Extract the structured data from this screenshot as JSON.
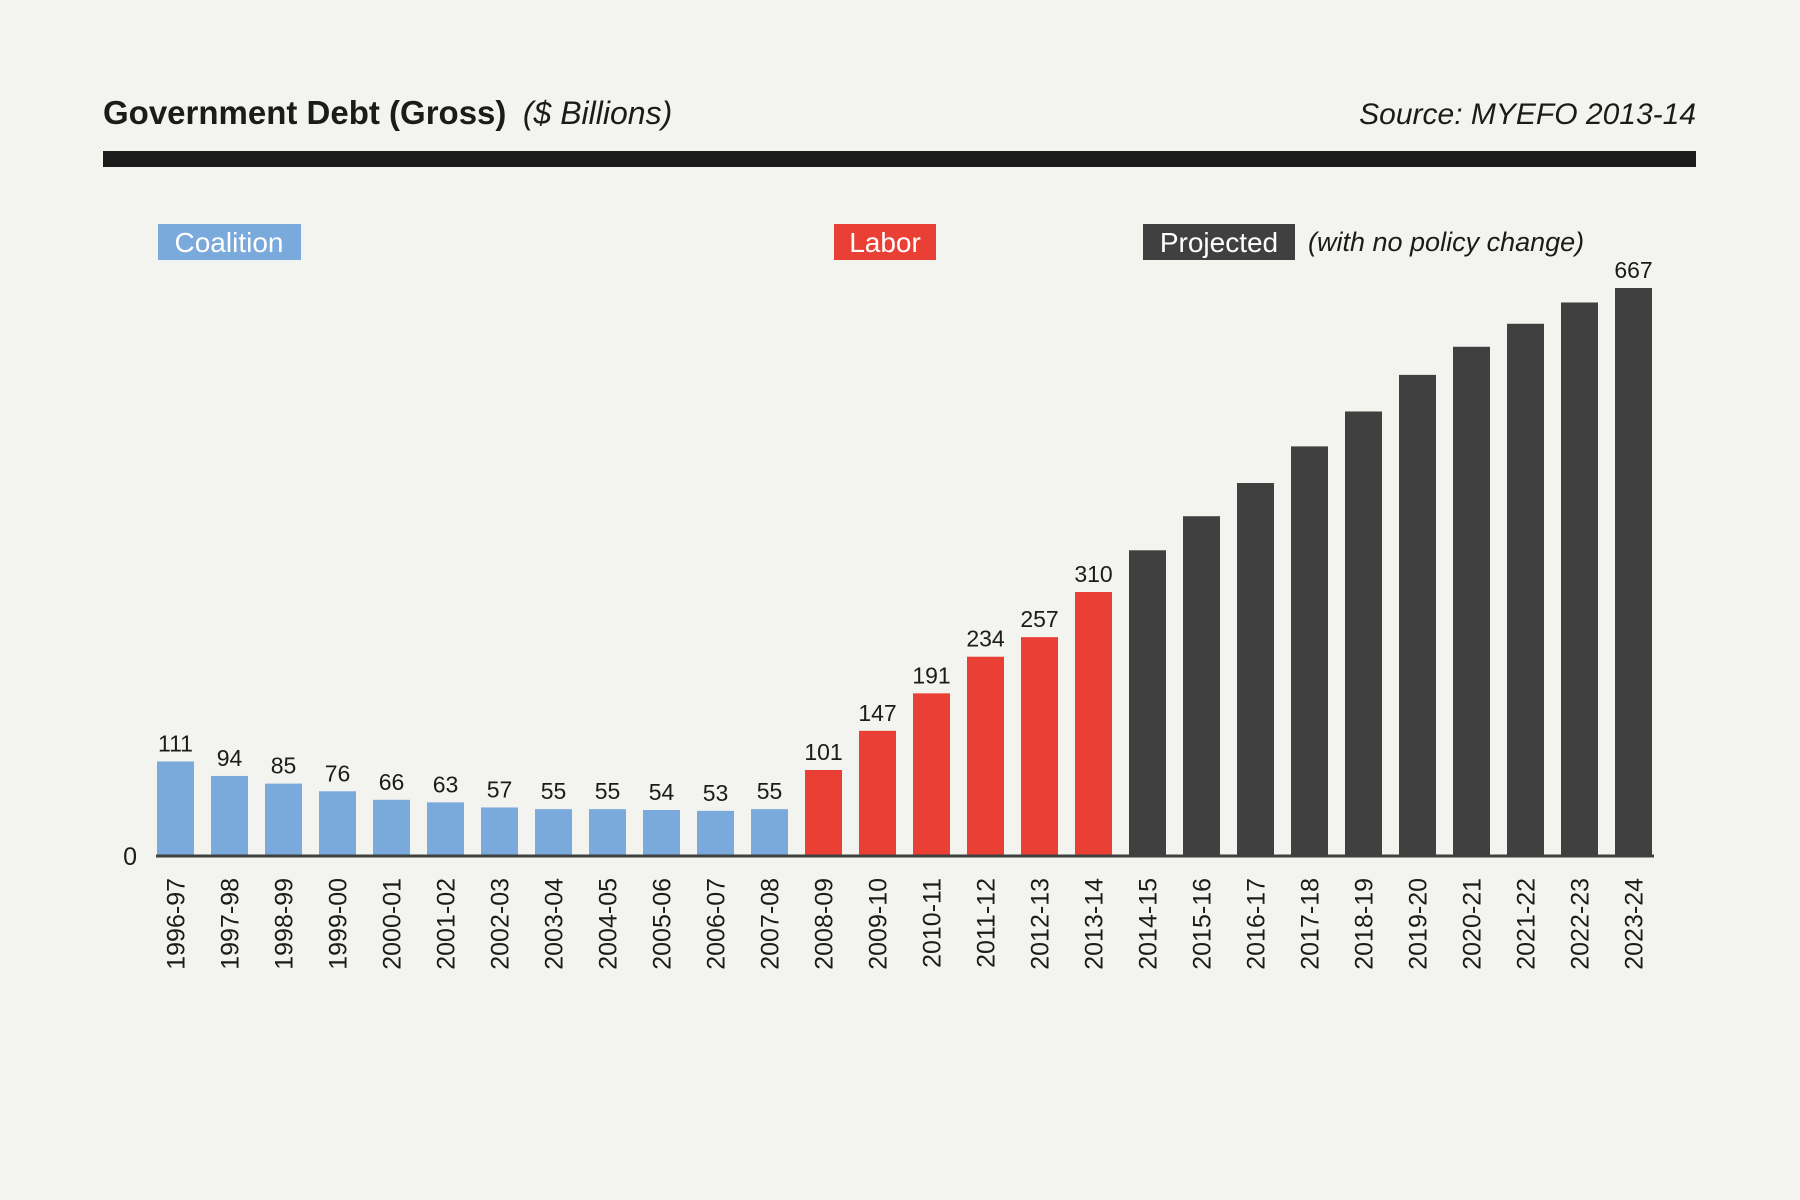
{
  "header": {
    "title": "Government Debt (Gross)",
    "subtitle": "($ Billions)",
    "source": "Source: MYEFO 2013-14"
  },
  "legend": {
    "coalition": "Coalition",
    "labor": "Labor",
    "projected": "Projected",
    "projected_note": "(with no policy change)"
  },
  "colors": {
    "coalition": "#7aa9dc",
    "labor": "#ea3f35",
    "projected": "#404040",
    "rule": "#1b1b1b",
    "background": "#f3f3ef"
  },
  "chart_data": {
    "type": "bar",
    "title": "Government Debt (Gross)",
    "unit": "($ Billions)",
    "ylim": [
      0,
      667
    ],
    "zero_tick": "0",
    "categories": [
      "1996-97",
      "1997-98",
      "1998-99",
      "1999-00",
      "2000-01",
      "2001-02",
      "2002-03",
      "2003-04",
      "2004-05",
      "2005-06",
      "2006-07",
      "2007-08",
      "2008-09",
      "2009-10",
      "2010-11",
      "2011-12",
      "2012-13",
      "2013-14",
      "2014-15",
      "2015-16",
      "2016-17",
      "2017-18",
      "2018-19",
      "2019-20",
      "2020-21",
      "2021-22",
      "2022-23",
      "2023-24"
    ],
    "values": [
      111,
      94,
      85,
      76,
      66,
      63,
      57,
      55,
      55,
      54,
      53,
      55,
      101,
      147,
      191,
      234,
      257,
      310,
      359,
      399,
      438,
      481,
      522,
      565,
      598,
      625,
      650,
      667
    ],
    "groups": [
      "coalition",
      "coalition",
      "coalition",
      "coalition",
      "coalition",
      "coalition",
      "coalition",
      "coalition",
      "coalition",
      "coalition",
      "coalition",
      "coalition",
      "labor",
      "labor",
      "labor",
      "labor",
      "labor",
      "labor",
      "projected",
      "projected",
      "projected",
      "projected",
      "projected",
      "projected",
      "projected",
      "projected",
      "projected",
      "projected"
    ],
    "value_labels": [
      "111",
      "94",
      "85",
      "76",
      "66",
      "63",
      "57",
      "55",
      "55",
      "54",
      "53",
      "55",
      "101",
      "147",
      "191",
      "234",
      "257",
      "310",
      "",
      "",
      "",
      "",
      "",
      "",
      "",
      "",
      "",
      "667"
    ]
  }
}
